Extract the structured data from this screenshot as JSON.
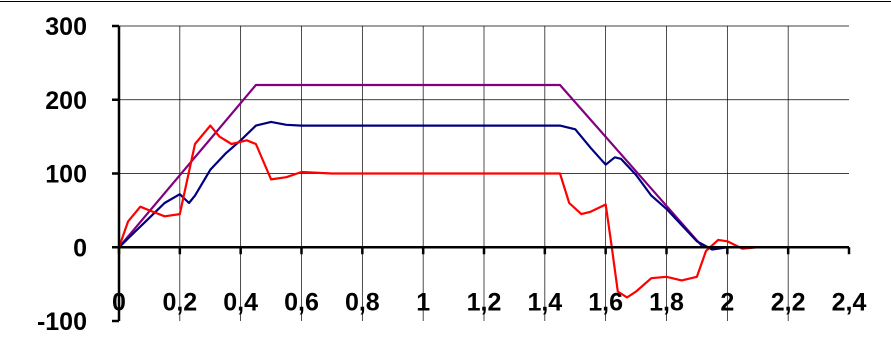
{
  "chart_data": {
    "type": "line",
    "title": "",
    "xlabel": "",
    "ylabel": "",
    "xlim": [
      0,
      2.4
    ],
    "ylim": [
      -100,
      300
    ],
    "grid": true,
    "legend": "none",
    "x_ticks": [
      "0",
      "0,2",
      "0,4",
      "0,6",
      "0,8",
      "1",
      "1,2",
      "1,4",
      "1,6",
      "1,8",
      "2",
      "2,2",
      "2,4"
    ],
    "y_ticks": [
      "300",
      "200",
      "100",
      "0",
      "-100"
    ],
    "series": [
      {
        "color": "#800080",
        "x": [
          0,
          0.45,
          1.45,
          1.92,
          2.28
        ],
        "y": [
          0,
          220,
          220,
          0,
          0
        ]
      },
      {
        "color": "#000080",
        "x": [
          0,
          0.05,
          0.1,
          0.15,
          0.2,
          0.23,
          0.25,
          0.3,
          0.35,
          0.4,
          0.45,
          0.5,
          0.55,
          0.6,
          0.7,
          0.8,
          1.0,
          1.2,
          1.4,
          1.45,
          1.5,
          1.55,
          1.6,
          1.63,
          1.65,
          1.7,
          1.75,
          1.8,
          1.85,
          1.9,
          1.95,
          2.0,
          2.1,
          2.28
        ],
        "y": [
          0,
          20,
          40,
          60,
          72,
          60,
          70,
          105,
          127,
          145,
          165,
          170,
          166,
          165,
          165,
          165,
          165,
          165,
          165,
          165,
          160,
          135,
          112,
          122,
          120,
          98,
          70,
          52,
          30,
          8,
          -3,
          0,
          0,
          0
        ]
      },
      {
        "color": "#ff0000",
        "x": [
          0,
          0.03,
          0.07,
          0.1,
          0.15,
          0.2,
          0.25,
          0.3,
          0.33,
          0.37,
          0.42,
          0.45,
          0.5,
          0.55,
          0.6,
          0.7,
          0.8,
          1.0,
          1.2,
          1.45,
          1.48,
          1.52,
          1.55,
          1.6,
          1.62,
          1.64,
          1.67,
          1.7,
          1.75,
          1.8,
          1.85,
          1.9,
          1.93,
          1.97,
          2.0,
          2.05,
          2.1,
          2.28
        ],
        "y": [
          0,
          35,
          55,
          50,
          42,
          45,
          140,
          165,
          150,
          140,
          145,
          140,
          92,
          95,
          102,
          100,
          100,
          100,
          100,
          100,
          60,
          45,
          48,
          58,
          0,
          -60,
          -68,
          -60,
          -42,
          -40,
          -45,
          -40,
          -5,
          10,
          8,
          -2,
          0,
          0
        ]
      }
    ]
  }
}
